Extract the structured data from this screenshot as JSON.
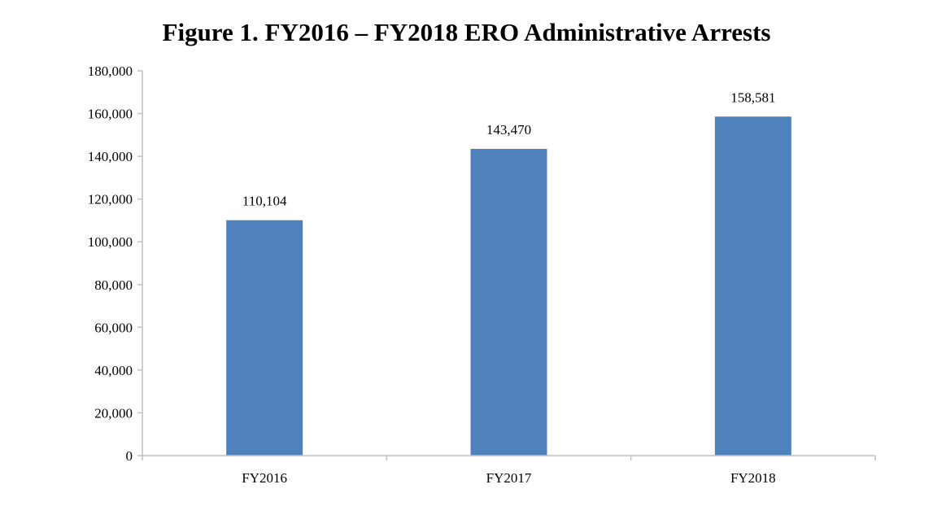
{
  "chart_data": {
    "type": "bar",
    "title": "Figure 1. FY2016 – FY2018 ERO Administrative Arrests",
    "categories": [
      "FY2016",
      "FY2017",
      "FY2018"
    ],
    "values": [
      110104,
      143470,
      158581
    ],
    "data_labels": [
      "110,104",
      "143,470",
      "158,581"
    ],
    "ylim": [
      0,
      180000
    ],
    "yticks": [
      0,
      20000,
      40000,
      60000,
      80000,
      100000,
      120000,
      140000,
      160000,
      180000
    ],
    "ytick_labels": [
      "0",
      "20,000",
      "40,000",
      "60,000",
      "80,000",
      "100,000",
      "120,000",
      "140,000",
      "160,000",
      "180,000"
    ],
    "xlabel": "",
    "ylabel": "",
    "grid": false,
    "legend": "none",
    "bar_color": "#4f81bd",
    "axis_color": "#bfbfbf"
  }
}
